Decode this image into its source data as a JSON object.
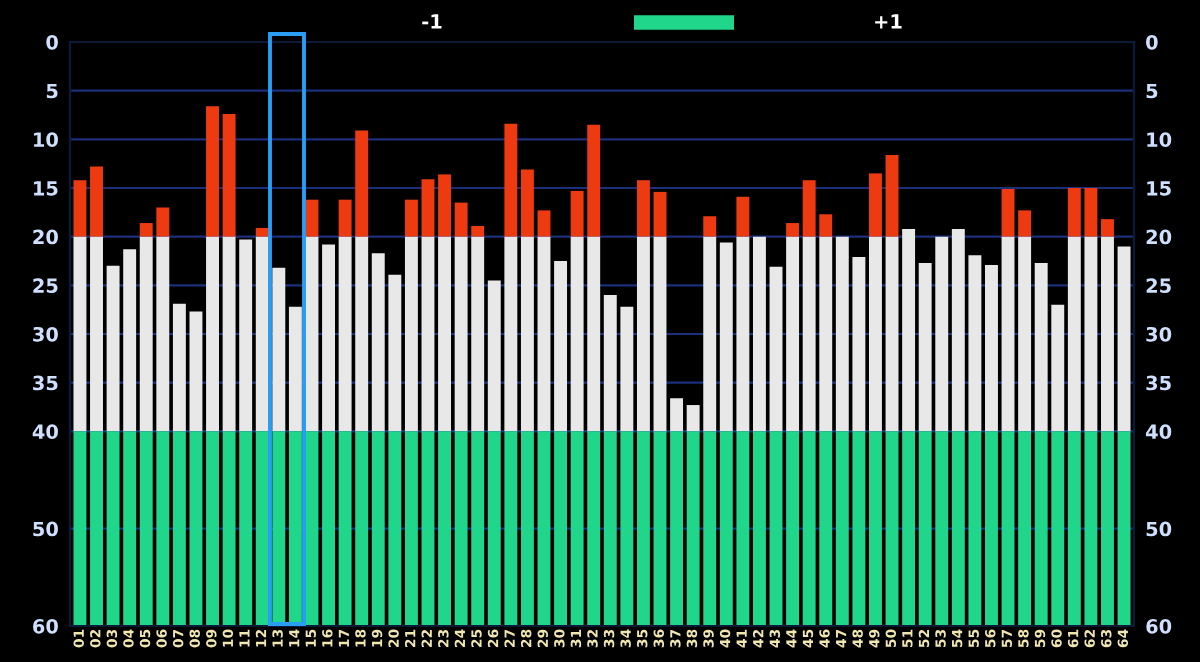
{
  "chart_data": {
    "type": "bar",
    "categories": [
      "01",
      "02",
      "03",
      "04",
      "05",
      "06",
      "07",
      "08",
      "09",
      "10",
      "11",
      "12",
      "13",
      "14",
      "15",
      "16",
      "17",
      "18",
      "19",
      "20",
      "21",
      "22",
      "23",
      "24",
      "25",
      "26",
      "27",
      "28",
      "29",
      "30",
      "31",
      "32",
      "33",
      "34",
      "35",
      "36",
      "37",
      "38",
      "39",
      "40",
      "41",
      "42",
      "43",
      "44",
      "45",
      "46",
      "47",
      "48",
      "49",
      "50",
      "51",
      "52",
      "53",
      "54",
      "55",
      "56",
      "57",
      "58",
      "59",
      "60",
      "61",
      "62",
      "63",
      "64"
    ],
    "series": [
      {
        "color": "#ee3a10",
        "base": [
          20,
          20,
          null,
          null,
          20,
          20,
          null,
          null,
          20,
          20,
          null,
          20,
          null,
          null,
          20,
          null,
          20,
          20,
          null,
          null,
          20,
          20,
          20,
          20,
          20,
          null,
          20,
          20,
          20,
          null,
          20,
          20,
          null,
          null,
          20,
          20,
          null,
          null,
          20,
          null,
          20,
          null,
          null,
          20,
          20,
          20,
          null,
          null,
          20,
          20,
          null,
          null,
          null,
          null,
          null,
          null,
          20,
          20,
          null,
          null,
          20,
          20,
          20,
          null
        ],
        "values": [
          -5.8,
          -7.2,
          null,
          null,
          -1.4,
          -3.0,
          null,
          null,
          -13.4,
          -12.6,
          null,
          -0.9,
          null,
          null,
          -3.8,
          null,
          -3.8,
          -10.9,
          null,
          null,
          -3.8,
          -5.9,
          -6.4,
          -3.5,
          -1.1,
          null,
          -11.6,
          -6.9,
          -2.7,
          null,
          -4.7,
          -11.5,
          null,
          null,
          -5.8,
          -4.6,
          null,
          null,
          -2.1,
          null,
          -4.1,
          null,
          null,
          -1.4,
          -5.8,
          -2.3,
          null,
          null,
          -6.5,
          -8.4,
          null,
          null,
          null,
          null,
          null,
          null,
          -4.9,
          -2.7,
          null,
          null,
          -5.0,
          -5.0,
          -1.8,
          null
        ]
      },
      {
        "color": "#e8e8e8",
        "base": [
          40,
          40,
          40,
          40,
          40,
          40,
          40,
          40,
          40,
          40,
          40,
          40,
          40,
          40,
          40,
          40,
          40,
          40,
          40,
          40,
          40,
          40,
          40,
          40,
          40,
          40,
          40,
          40,
          40,
          40,
          40,
          40,
          40,
          40,
          40,
          40,
          40,
          40,
          40,
          40,
          40,
          40,
          40,
          40,
          40,
          40,
          40,
          40,
          40,
          40,
          40,
          40,
          40,
          40,
          40,
          40,
          40,
          40,
          40,
          40,
          40,
          40,
          40,
          40
        ],
        "values": [
          -20,
          -20,
          -17.0,
          -18.7,
          -20,
          -20,
          -13.1,
          -12.3,
          -20,
          -20,
          -19.7,
          -20,
          -16.8,
          -12.8,
          -20,
          -19.2,
          -20,
          -20,
          -18.3,
          -16.1,
          -20,
          -20,
          -20,
          -20,
          -20,
          -15.5,
          -20,
          -20,
          -20,
          -17.5,
          -20,
          -20,
          -14.0,
          -12.8,
          -20,
          -20,
          -3.4,
          -2.7,
          -20,
          -19.4,
          -20,
          -20,
          -16.9,
          -20,
          -20,
          -20,
          -20,
          -17.9,
          -20,
          -20,
          -20.8,
          -17.3,
          -20,
          -20.8,
          -18.1,
          -17.1,
          -20,
          -20,
          -17.3,
          -13.0,
          -20,
          -20,
          -20,
          -19.0
        ]
      },
      {
        "color": "#1fd68a",
        "base": [
          60,
          60,
          60,
          60,
          60,
          60,
          60,
          60,
          60,
          60,
          60,
          60,
          60,
          60,
          60,
          60,
          60,
          60,
          60,
          60,
          60,
          60,
          60,
          60,
          60,
          60,
          60,
          60,
          60,
          60,
          60,
          60,
          60,
          60,
          60,
          60,
          60,
          60,
          60,
          60,
          60,
          60,
          60,
          60,
          60,
          60,
          60,
          60,
          60,
          60,
          60,
          60,
          60,
          60,
          60,
          60,
          60,
          60,
          60,
          60,
          60,
          60,
          60,
          60
        ],
        "values": [
          -20,
          -20,
          -20,
          -20,
          -20,
          -20,
          -20,
          -20,
          -20,
          -20,
          -20,
          -20,
          -20,
          -20,
          -20,
          -20,
          -20,
          -20,
          -20,
          -20,
          -20,
          -20,
          -20,
          -20,
          -20,
          -20,
          -20,
          -20,
          -20,
          -20,
          -20,
          -20,
          -20,
          -20,
          -20,
          -20,
          -20,
          -20,
          -20,
          -20,
          -20,
          -20,
          -20,
          -20,
          -20,
          -20,
          -20,
          -20,
          -20,
          -20,
          -20,
          -20,
          -20,
          -20,
          -20,
          -20,
          -20,
          -20,
          -20,
          -20,
          -20,
          -20,
          -20,
          -20
        ]
      }
    ],
    "ylim": [
      60,
      0
    ],
    "yticks": [
      0,
      5,
      10,
      15,
      20,
      25,
      30,
      35,
      40,
      50,
      60
    ],
    "y2lim": [
      60,
      0
    ],
    "y2ticks": [
      0,
      5,
      10,
      15,
      20,
      25,
      30,
      35,
      40,
      50,
      60
    ],
    "grid": "y",
    "annotations": [
      "-1",
      "+1"
    ]
  }
}
